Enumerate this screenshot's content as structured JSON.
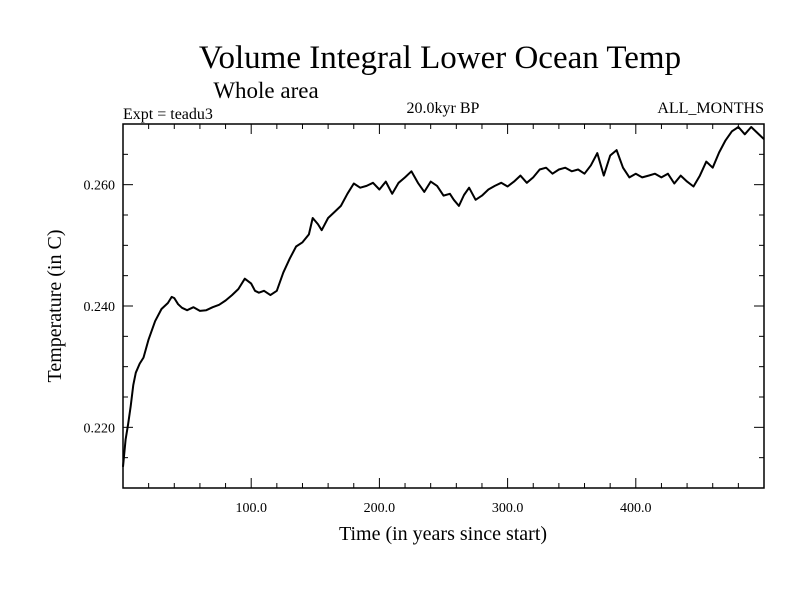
{
  "chart_data": {
    "type": "line",
    "title": "Volume Integral Lower Ocean Temp",
    "subtitle": "Whole area",
    "experiment": "Expt = teadu3",
    "period": "20.0kyr BP",
    "months": "ALL_MONTHS",
    "xlabel": "Time (in years since start)",
    "ylabel": "Temperature (in C)",
    "xlim": [
      0,
      500
    ],
    "ylim": [
      0.21,
      0.27
    ],
    "x_ticks": [
      100,
      200,
      300,
      400
    ],
    "x_tick_labels": [
      "100.0",
      "200.0",
      "300.0",
      "400.0"
    ],
    "y_ticks": [
      0.22,
      0.24,
      0.26
    ],
    "y_tick_labels": [
      "0.220",
      "0.240",
      "0.260"
    ],
    "series": [
      {
        "name": "teadu3",
        "x": [
          0,
          2,
          4,
          6,
          8,
          10,
          13,
          16,
          20,
          25,
          30,
          35,
          38,
          40,
          43,
          46,
          50,
          55,
          60,
          65,
          70,
          75,
          80,
          85,
          90,
          95,
          100,
          103,
          106,
          110,
          115,
          120,
          125,
          130,
          135,
          140,
          145,
          148,
          152,
          155,
          160,
          165,
          170,
          175,
          180,
          185,
          190,
          195,
          200,
          205,
          210,
          215,
          220,
          225,
          230,
          235,
          240,
          245,
          250,
          255,
          258,
          262,
          266,
          270,
          275,
          280,
          285,
          290,
          295,
          300,
          305,
          310,
          315,
          320,
          325,
          330,
          335,
          340,
          345,
          350,
          355,
          360,
          365,
          370,
          375,
          380,
          385,
          390,
          395,
          400,
          405,
          410,
          415,
          420,
          425,
          430,
          435,
          440,
          445,
          450,
          455,
          460,
          465,
          470,
          475,
          480,
          485,
          490,
          495,
          500
        ],
        "values": [
          0.2135,
          0.218,
          0.2205,
          0.2235,
          0.227,
          0.229,
          0.2305,
          0.2315,
          0.2345,
          0.2375,
          0.2395,
          0.2405,
          0.2415,
          0.2413,
          0.2403,
          0.2397,
          0.2393,
          0.2398,
          0.2392,
          0.2393,
          0.2398,
          0.2402,
          0.2409,
          0.2418,
          0.2428,
          0.2445,
          0.2437,
          0.2425,
          0.2422,
          0.2425,
          0.2418,
          0.2425,
          0.2455,
          0.2478,
          0.2498,
          0.2505,
          0.2518,
          0.2545,
          0.2535,
          0.2525,
          0.2545,
          0.2555,
          0.2565,
          0.2585,
          0.2602,
          0.2595,
          0.2598,
          0.2603,
          0.2592,
          0.2605,
          0.2585,
          0.2603,
          0.2612,
          0.2622,
          0.2603,
          0.2588,
          0.2605,
          0.2598,
          0.2582,
          0.2585,
          0.2575,
          0.2565,
          0.2583,
          0.2595,
          0.2575,
          0.2582,
          0.2592,
          0.2598,
          0.2603,
          0.2597,
          0.2605,
          0.2615,
          0.2603,
          0.2612,
          0.2625,
          0.2628,
          0.2618,
          0.2625,
          0.2628,
          0.2622,
          0.2625,
          0.2618,
          0.2632,
          0.2652,
          0.2615,
          0.2648,
          0.2657,
          0.2628,
          0.2612,
          0.2618,
          0.2612,
          0.2615,
          0.2618,
          0.2612,
          0.2618,
          0.2602,
          0.2615,
          0.2605,
          0.2597,
          0.2615,
          0.2638,
          0.2628,
          0.2653,
          0.2673,
          0.2688,
          0.2695,
          0.2683,
          0.2695,
          0.2685,
          0.2675
        ]
      }
    ]
  }
}
